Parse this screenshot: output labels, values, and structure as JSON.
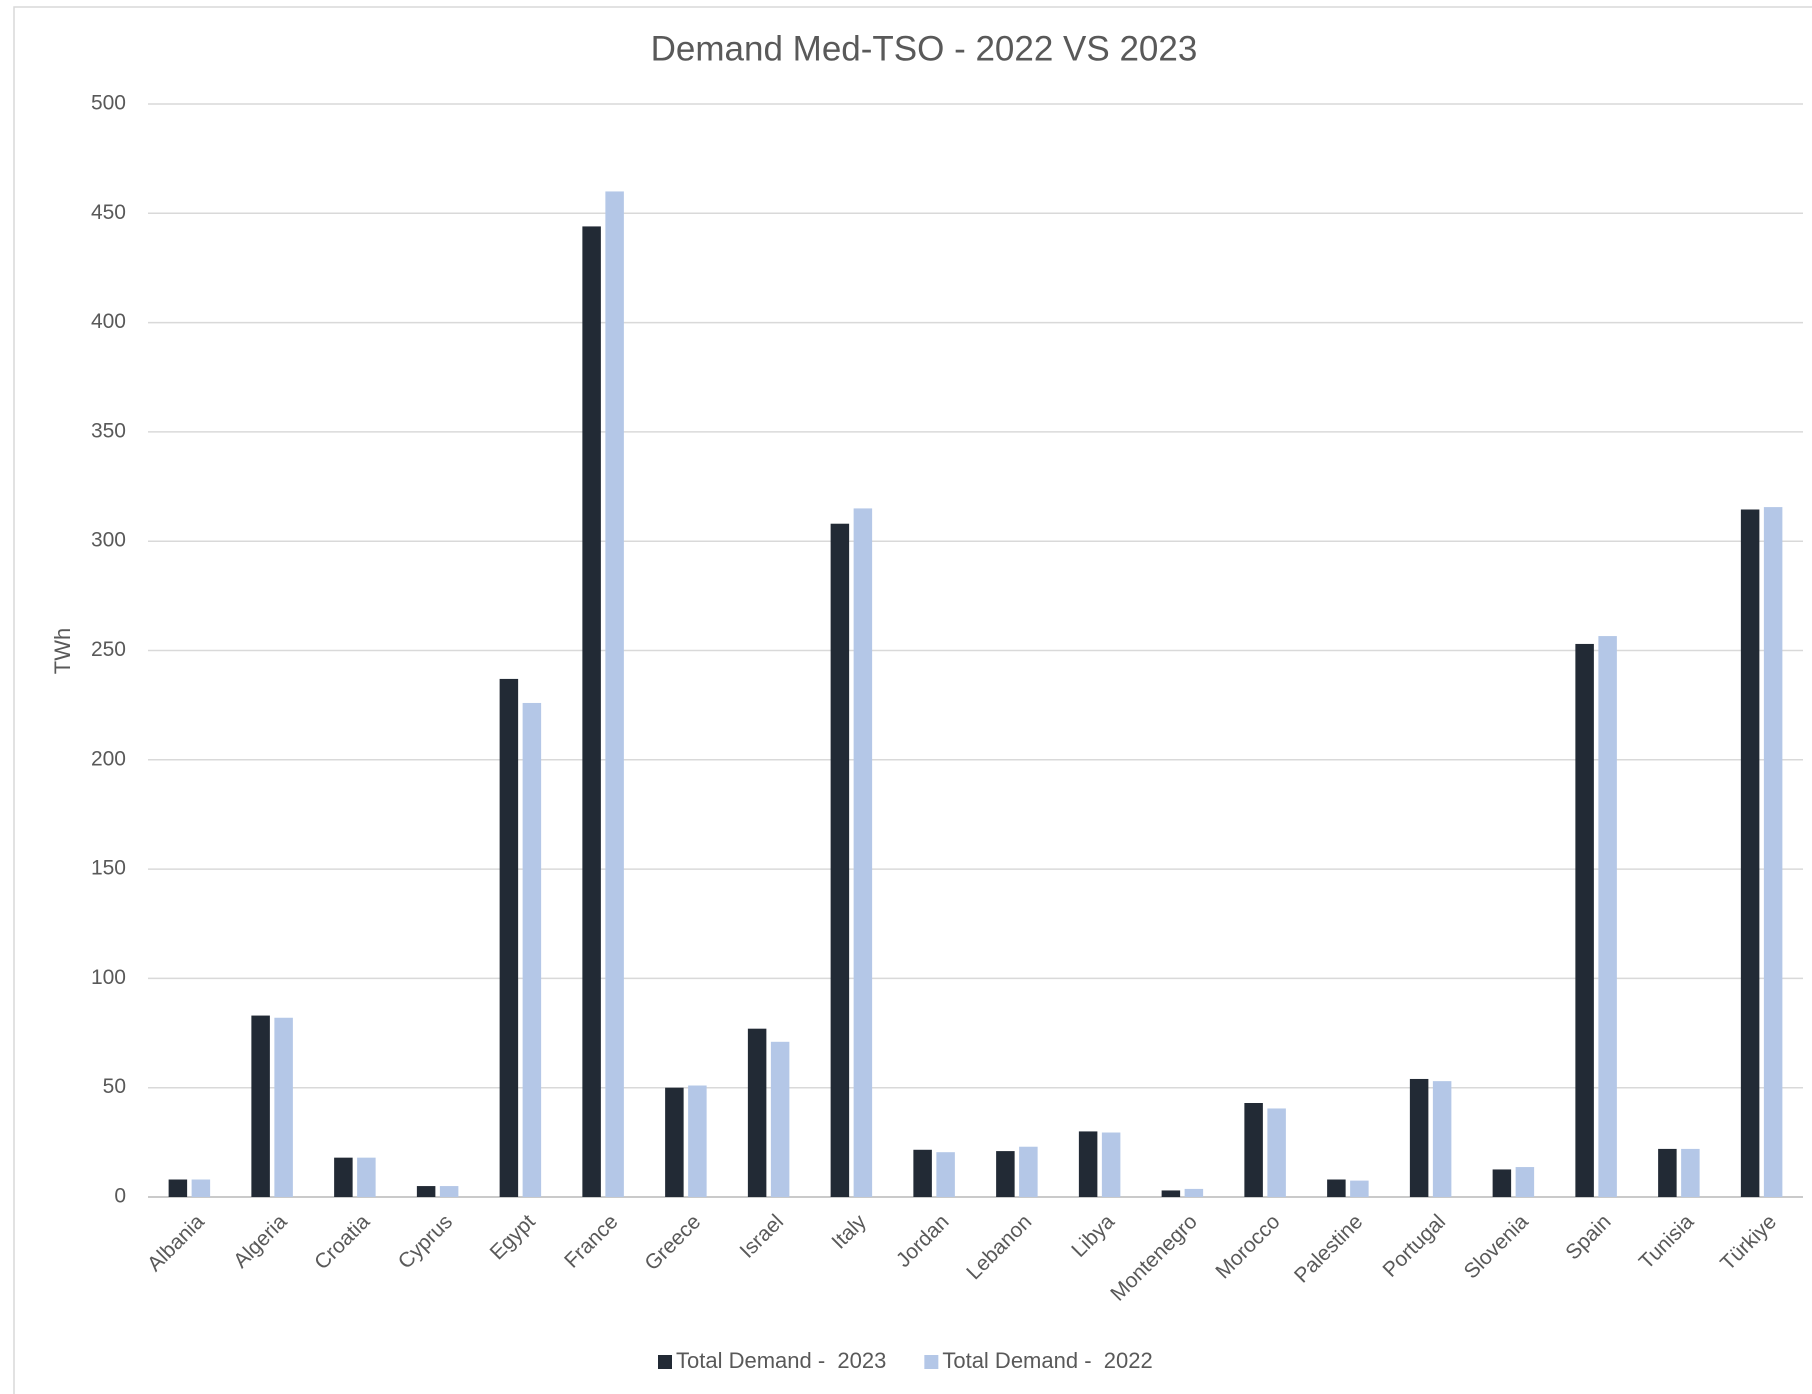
{
  "chart_data": {
    "type": "bar",
    "title": "Demand Med-TSO - 2022 VS 2023",
    "y_label": "TWh",
    "categories": [
      "Albania",
      "Algeria",
      "Croatia",
      "Cyprus",
      "Egypt",
      "France",
      "Greece",
      "Israel",
      "Italy",
      "Jordan",
      "Lebanon",
      "Libya",
      "Montenegro",
      "Morocco",
      "Palestine",
      "Portugal",
      "Slovenia",
      "Spain",
      "Tunisia",
      "Türkiye"
    ],
    "series": [
      {
        "name": "Total Demand -  2023",
        "color": "#222a35",
        "values": [
          8,
          83,
          18,
          5,
          237,
          444,
          50,
          77,
          308,
          21.6,
          21,
          30,
          3,
          43,
          8,
          54,
          12.6,
          253,
          22,
          314.5
        ]
      },
      {
        "name": "Total Demand -  2022",
        "color": "#b4c7e7",
        "values": [
          8,
          82,
          18,
          5,
          226,
          460,
          51,
          71,
          315,
          20.5,
          23,
          29.5,
          3.7,
          40.5,
          7.5,
          53,
          13.7,
          256.6,
          22,
          315.6
        ]
      }
    ],
    "ylim": [
      0,
      500
    ],
    "yticks": [
      0,
      50,
      100,
      150,
      200,
      250,
      300,
      350,
      400,
      450,
      500
    ],
    "grid": true,
    "legend": "bottom"
  }
}
